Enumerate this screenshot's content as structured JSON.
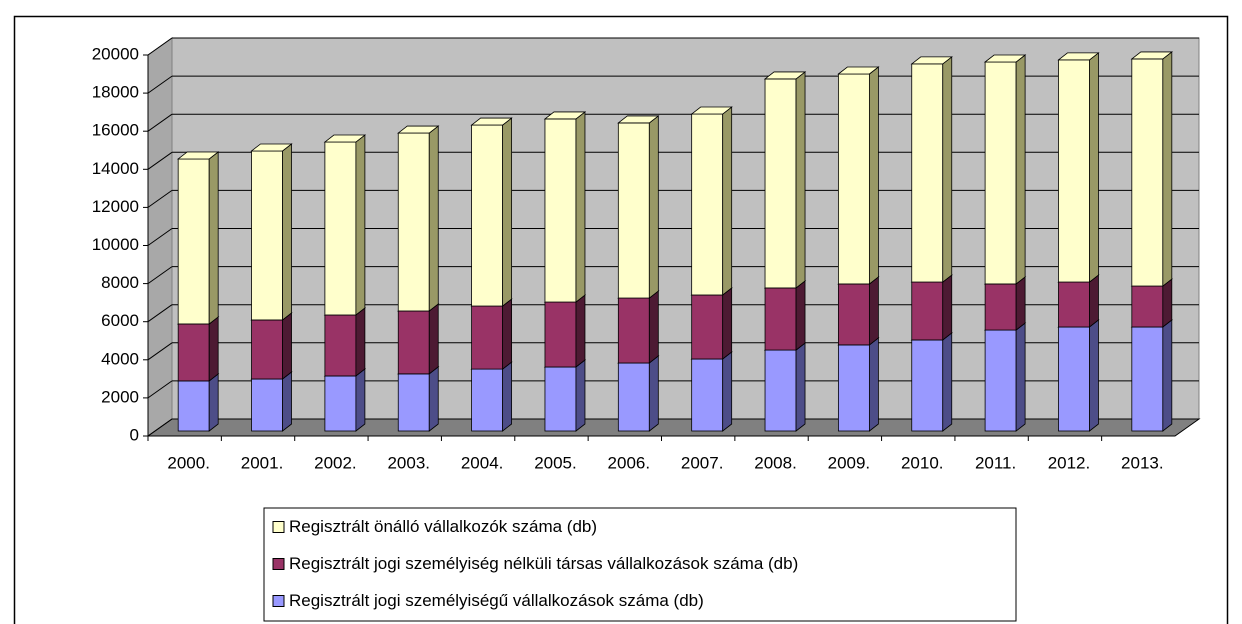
{
  "chart_data": {
    "type": "bar3d_stacked",
    "categories": [
      "2000.",
      "2001.",
      "2002.",
      "2003.",
      "2004.",
      "2005.",
      "2006.",
      "2007.",
      "2008.",
      "2009.",
      "2010.",
      "2011.",
      "2012.",
      "2013."
    ],
    "series": [
      {
        "name": "Regisztrált jogi személyiségű vállalkozások száma (db)",
        "color": "#9999ff",
        "side": "#4d4d88",
        "values": [
          2630,
          2730,
          2890,
          3000,
          3250,
          3360,
          3570,
          3780,
          4250,
          4520,
          4780,
          5300,
          5460,
          5460
        ]
      },
      {
        "name": "Regisztrált jogi személyiség nélküli társas vállalkozások száma (db)",
        "color": "#993366",
        "side": "#4d1a33",
        "values": [
          2990,
          3100,
          3200,
          3300,
          3310,
          3410,
          3410,
          3360,
          3260,
          3200,
          3040,
          2420,
          2360,
          2150
        ]
      },
      {
        "name": "Regisztrált önálló vállalkozók száma (db)",
        "color": "#ffffcc",
        "side": "#999966",
        "values": [
          8660,
          8870,
          9080,
          9340,
          9500,
          9610,
          9190,
          9500,
          10970,
          11020,
          11450,
          11650,
          11660,
          11920
        ]
      }
    ],
    "ylim": [
      0,
      20000
    ],
    "yticks": [
      0,
      2000,
      4000,
      6000,
      8000,
      10000,
      12000,
      14000,
      16000,
      18000,
      20000
    ],
    "grid": true
  }
}
